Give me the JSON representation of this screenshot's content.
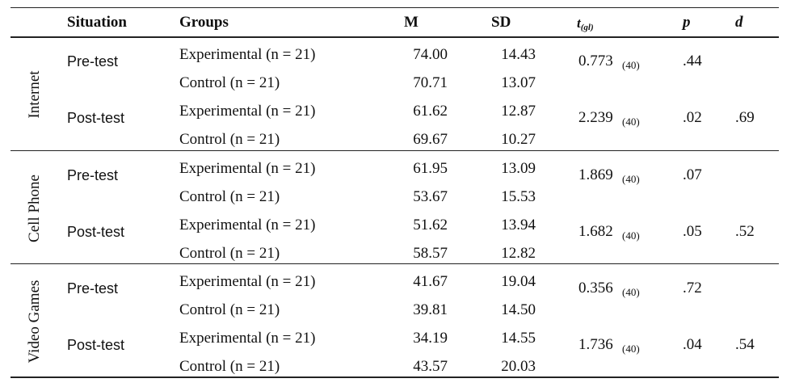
{
  "header": {
    "situation": "Situation",
    "groups": "Groups",
    "m": "M",
    "sd": "SD",
    "t_main": "t",
    "t_sub": "(gl)",
    "p": "p",
    "d": "d"
  },
  "sections": [
    {
      "name": "Internet",
      "phases": [
        {
          "label": "Pre-test",
          "rows": [
            {
              "group": "Experimental (n = 21)",
              "m": "74.00",
              "sd": "14.43"
            },
            {
              "group": "Control (n = 21)",
              "m": "70.71",
              "sd": "13.07"
            }
          ],
          "t": "0.773",
          "df": "(40)",
          "p": ".44",
          "d": ""
        },
        {
          "label": "Post-test",
          "rows": [
            {
              "group": "Experimental (n = 21)",
              "m": "61.62",
              "sd": "12.87"
            },
            {
              "group": "Control (n = 21)",
              "m": "69.67",
              "sd": "10.27"
            }
          ],
          "t": "2.239",
          "df": "(40)",
          "p": ".02",
          "d": ".69"
        }
      ]
    },
    {
      "name": "Cell Phone",
      "phases": [
        {
          "label": "Pre-test",
          "rows": [
            {
              "group": "Experimental (n = 21)",
              "m": "61.95",
              "sd": "13.09"
            },
            {
              "group": "Control (n = 21)",
              "m": "53.67",
              "sd": "15.53"
            }
          ],
          "t": "1.869",
          "df": "(40)",
          "p": ".07",
          "d": ""
        },
        {
          "label": "Post-test",
          "rows": [
            {
              "group": "Experimental (n = 21)",
              "m": "51.62",
              "sd": "13.94"
            },
            {
              "group": "Control (n = 21)",
              "m": "58.57",
              "sd": "12.82"
            }
          ],
          "t": "1.682",
          "df": "(40)",
          "p": ".05",
          "d": ".52"
        }
      ]
    },
    {
      "name": "Video Games",
      "phases": [
        {
          "label": "Pre-test",
          "rows": [
            {
              "group": "Experimental (n = 21)",
              "m": "41.67",
              "sd": "19.04"
            },
            {
              "group": "Control (n = 21)",
              "m": "39.81",
              "sd": "14.50"
            }
          ],
          "t": "0.356",
          "df": "(40)",
          "p": ".72",
          "d": ""
        },
        {
          "label": "Post-test",
          "rows": [
            {
              "group": "Experimental (n = 21)",
              "m": "34.19",
              "sd": "14.55"
            },
            {
              "group": "Control (n = 21)",
              "m": "43.57",
              "sd": "20.03"
            }
          ],
          "t": "1.736",
          "df": "(40)",
          "p": ".04",
          "d": ".54"
        }
      ]
    }
  ]
}
